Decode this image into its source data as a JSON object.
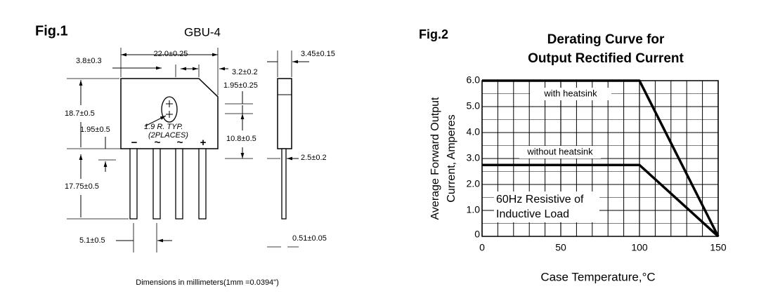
{
  "figure1": {
    "label": "Fig.1",
    "package": "GBU-4",
    "dimensions": [
      "3.8±0.3",
      "22.0±0.25",
      "3.2±0.2",
      "3.45±0.15",
      "1.95±0.25",
      "18.7±0.5",
      "1.95±0.5",
      "10.8±0.5",
      "2.5±0.2",
      "17.75±0.5",
      "5.1±0.5",
      "0.51±0.05"
    ],
    "hole_note": [
      "1.9 R. TYP.",
      "(2PLACES)"
    ],
    "pins": [
      "−",
      "~",
      "~",
      "+"
    ],
    "footnote": "Dimensions in millimeters(1mm =0.0394\")"
  },
  "chart_data": {
    "type": "line",
    "label": "Fig.2",
    "title": [
      "Derating Curve for",
      "Output Rectified Current"
    ],
    "y_label": [
      "Average Forward Output",
      "Current, Amperes"
    ],
    "x_label": "Case Temperature,°C",
    "x": [
      0,
      100,
      150
    ],
    "series": [
      {
        "name": "with heatsink",
        "color": "#000000",
        "values": [
          6,
          6,
          0
        ]
      },
      {
        "name": "without heatsink",
        "color": "#000000",
        "values": [
          2.75,
          2.75,
          0
        ]
      }
    ],
    "annotation": [
      "60Hz Resistive of",
      "Inductive Load"
    ],
    "xlim": [
      0,
      150
    ],
    "ylim": [
      0,
      6
    ],
    "xticks": [
      0,
      50,
      100,
      150
    ],
    "yticks": [
      0,
      {
        "value": 1,
        "label": "1.0"
      },
      {
        "value": 2,
        "label": "2.0"
      },
      {
        "value": 3,
        "label": "3.0"
      },
      {
        "value": 4,
        "label": "4.0"
      },
      {
        "value": 5,
        "label": "5.0"
      },
      {
        "value": 6,
        "label": "6.0"
      }
    ],
    "grid": true,
    "x_minor_grid": [
      10,
      20,
      30,
      40,
      60,
      70,
      80,
      90,
      110,
      120,
      130,
      140
    ],
    "y_minor_grid": [
      0.5,
      1.5,
      2.5,
      3.5,
      4.5,
      5.5
    ]
  }
}
